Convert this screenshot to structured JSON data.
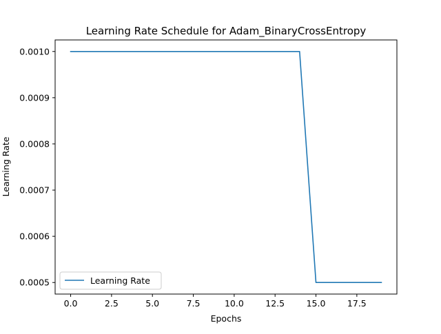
{
  "chart_data": {
    "type": "line",
    "title": "Learning Rate Schedule for Adam_BinaryCrossEntropy",
    "xlabel": "Epochs",
    "ylabel": "Learning Rate",
    "xlim": [
      -0.95,
      19.95
    ],
    "ylim": [
      0.000475,
      0.001025
    ],
    "xticks": [
      0.0,
      2.5,
      5.0,
      7.5,
      10.0,
      12.5,
      15.0,
      17.5
    ],
    "xtick_labels": [
      "0.0",
      "2.5",
      "5.0",
      "7.5",
      "10.0",
      "12.5",
      "15.0",
      "17.5"
    ],
    "yticks": [
      0.0005,
      0.0006,
      0.0007,
      0.0008,
      0.0009,
      0.001
    ],
    "ytick_labels": [
      "0.0005",
      "0.0006",
      "0.0007",
      "0.0008",
      "0.0009",
      "0.0010"
    ],
    "grid": false,
    "legend_position": "lower-left",
    "series": [
      {
        "name": "Learning Rate",
        "color": "#1f77b4",
        "x": [
          0,
          1,
          2,
          3,
          4,
          5,
          6,
          7,
          8,
          9,
          10,
          11,
          12,
          13,
          14,
          15,
          16,
          17,
          18,
          19
        ],
        "y": [
          0.001,
          0.001,
          0.001,
          0.001,
          0.001,
          0.001,
          0.001,
          0.001,
          0.001,
          0.001,
          0.001,
          0.001,
          0.001,
          0.001,
          0.001,
          0.0005,
          0.0005,
          0.0005,
          0.0005,
          0.0005
        ]
      }
    ]
  }
}
